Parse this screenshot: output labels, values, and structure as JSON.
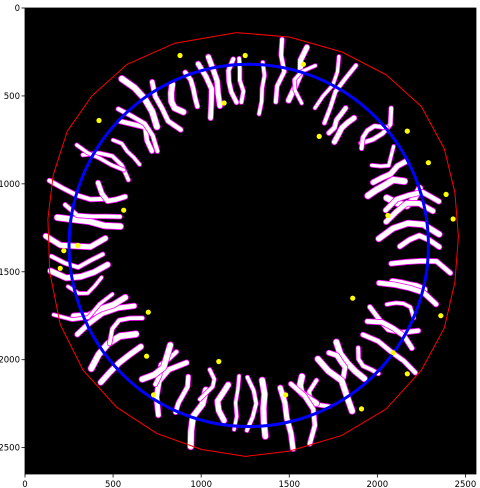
{
  "chart_data": {
    "type": "image-plot",
    "title": "",
    "xlabel": "",
    "ylabel": "",
    "xlim": [
      0,
      2560
    ],
    "ylim": [
      2650,
      0
    ],
    "x_ticks": [
      0,
      500,
      1000,
      1500,
      2000,
      2500
    ],
    "y_ticks": [
      0,
      500,
      1000,
      1500,
      2000,
      2500
    ],
    "x_tick_labels": [
      "0",
      "500",
      "1000",
      "1500",
      "2000",
      "2500"
    ],
    "y_tick_labels": [
      "0",
      "500",
      "1000",
      "1500",
      "2000",
      "2500"
    ],
    "background_color": "#000000",
    "outer_contour": {
      "color": "#ff0000",
      "points": [
        [
          1200,
          140
        ],
        [
          1500,
          165
        ],
        [
          1800,
          250
        ],
        [
          2050,
          380
        ],
        [
          2250,
          560
        ],
        [
          2380,
          800
        ],
        [
          2440,
          1050
        ],
        [
          2460,
          1300
        ],
        [
          2440,
          1560
        ],
        [
          2380,
          1820
        ],
        [
          2250,
          2060
        ],
        [
          2050,
          2280
        ],
        [
          1800,
          2430
        ],
        [
          1500,
          2520
        ],
        [
          1250,
          2550
        ],
        [
          1000,
          2510
        ],
        [
          750,
          2420
        ],
        [
          520,
          2270
        ],
        [
          330,
          2060
        ],
        [
          200,
          1800
        ],
        [
          140,
          1500
        ],
        [
          130,
          1200
        ],
        [
          160,
          950
        ],
        [
          240,
          700
        ],
        [
          380,
          500
        ],
        [
          580,
          320
        ],
        [
          850,
          200
        ]
      ]
    },
    "fitted_circle": {
      "color": "#0000ff",
      "cx": 1270,
      "cy": 1350,
      "rx": 1020,
      "ry": 1030
    },
    "vessel_color": "#ffffff",
    "vessel_edge_color": "#ff00ff",
    "endpoint_color": "#ffff00",
    "endpoints": [
      [
        880,
        270
      ],
      [
        1250,
        270
      ],
      [
        1580,
        320
      ],
      [
        420,
        640
      ],
      [
        1130,
        540
      ],
      [
        1670,
        730
      ],
      [
        2170,
        700
      ],
      [
        2290,
        880
      ],
      [
        2390,
        1060
      ],
      [
        2430,
        1200
      ],
      [
        2060,
        1180
      ],
      [
        560,
        1150
      ],
      [
        300,
        1350
      ],
      [
        220,
        1380
      ],
      [
        200,
        1480
      ],
      [
        2360,
        1750
      ],
      [
        1860,
        1650
      ],
      [
        700,
        1730
      ],
      [
        690,
        1980
      ],
      [
        1100,
        2010
      ],
      [
        730,
        2200
      ],
      [
        1480,
        2200
      ],
      [
        1910,
        2280
      ],
      [
        2170,
        2080
      ],
      [
        2090,
        1960
      ]
    ]
  }
}
